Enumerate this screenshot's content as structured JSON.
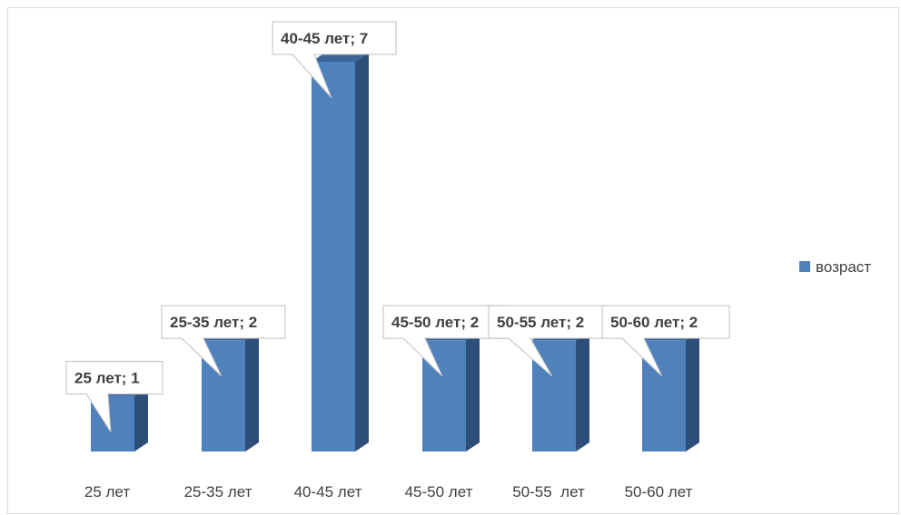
{
  "chart_data": {
    "type": "bar",
    "categories": [
      "25 лет",
      "25-35 лет",
      "40-45 лет",
      "45-50 лет",
      "50-55  лет",
      "50-60 лет"
    ],
    "series": [
      {
        "name": "возраст",
        "values": [
          1,
          2,
          7,
          2,
          2,
          2
        ]
      }
    ],
    "data_labels": [
      "25 лет; 1",
      "25-35 лет; 2",
      "40-45 лет; 7",
      "45-50 лет; 2",
      "50-55  лет; 2",
      "50-60 лет; 2"
    ],
    "ylim": [
      0,
      7
    ],
    "grid": false,
    "legend_position": "right",
    "style": "3d-column",
    "colors": {
      "bar_front": "#4f81bd",
      "bar_side": "#2e4e7a",
      "bar_top": "#3a6497",
      "label_border": "#bfbfbf",
      "text": "#404040"
    }
  }
}
